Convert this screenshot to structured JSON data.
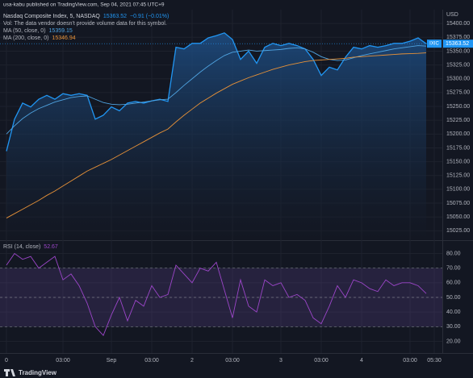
{
  "header": {
    "text": "usa-kabu published on TradingView.com, Sep 04, 2021 07:45 UTC+9"
  },
  "footer": {
    "brand": "TradingView"
  },
  "chart_data": [
    {
      "type": "area",
      "title": "Nasdaq Composite Index, 5, NASDAQ",
      "change": "−0.91 (−0.01%)",
      "note": "Vol: The data vendor doesn't provide volume data for this symbol.",
      "symbol_tag": "IXIC",
      "currency": "USD",
      "grid": true,
      "ylim": [
        15008,
        15425
      ],
      "yticks": [
        {
          "value": 15025,
          "label": "15025.00"
        },
        {
          "value": 15050,
          "label": "15050.00"
        },
        {
          "value": 15075,
          "label": "15075.00"
        },
        {
          "value": 15100,
          "label": "15100.00"
        },
        {
          "value": 15125,
          "label": "15125.00"
        },
        {
          "value": 15150,
          "label": "15150.00"
        },
        {
          "value": 15175,
          "label": "15175.00"
        },
        {
          "value": 15200,
          "label": "15200.00"
        },
        {
          "value": 15225,
          "label": "15225.00"
        },
        {
          "value": 15250,
          "label": "15250.00"
        },
        {
          "value": 15275,
          "label": "15275.00"
        },
        {
          "value": 15300,
          "label": "15300.00"
        },
        {
          "value": 15325,
          "label": "15325.00"
        },
        {
          "value": 15350,
          "label": "15350.00"
        },
        {
          "value": 15375,
          "label": "15375.00"
        },
        {
          "value": 15400,
          "label": "15400.00"
        }
      ],
      "series": [
        {
          "name": "Nasdaq Composite Index, 5, NASDAQ",
          "color": "#2196f3",
          "values": [
            15169,
            15227,
            15256,
            15249,
            15263,
            15270,
            15263,
            15273,
            15270,
            15273,
            15270,
            15227,
            15234,
            15249,
            15242,
            15256,
            15259,
            15256,
            15260,
            15263,
            15259,
            15357,
            15354,
            15364,
            15364,
            15374,
            15378,
            15383,
            15371,
            15335,
            15350,
            15328,
            15357,
            15364,
            15360,
            15364,
            15360,
            15354,
            15335,
            15306,
            15321,
            15316,
            15339,
            15357,
            15354,
            15360,
            15357,
            15360,
            15364,
            15364,
            15368,
            15374,
            15363.52,
            null
          ]
        },
        {
          "name": "MA (50, close, 0)",
          "color": "#4fa3e0",
          "values": [
            15200,
            15215,
            15228,
            15238,
            15246,
            15252,
            15258,
            15262,
            15266,
            15268,
            15269,
            15263,
            15257,
            15254,
            15253,
            15254,
            15256,
            15258,
            15260,
            15262,
            15263,
            15275,
            15288,
            15300,
            15312,
            15323,
            15333,
            15342,
            15348,
            15350,
            15352,
            15350,
            15351,
            15352,
            15353,
            15355,
            15356,
            15354,
            15348,
            15340,
            15335,
            15333,
            15334,
            15338,
            15342,
            15345,
            15348,
            15351,
            15354,
            15356,
            15358,
            15360,
            15359.15,
            null
          ]
        },
        {
          "name": "MA (200, close, 0)",
          "color": "#e69138",
          "values": [
            15048,
            15056,
            15064,
            15072,
            15080,
            15089,
            15097,
            15106,
            15115,
            15124,
            15133,
            15140,
            15147,
            15154,
            15162,
            15170,
            15178,
            15186,
            15194,
            15202,
            15209,
            15222,
            15234,
            15245,
            15256,
            15265,
            15274,
            15282,
            15290,
            15296,
            15302,
            15307,
            15312,
            15317,
            15321,
            15325,
            15328,
            15331,
            15333,
            15334,
            15335,
            15336,
            15337,
            15339,
            15340,
            15341,
            15342,
            15343,
            15344,
            15345,
            15345.5,
            15346,
            15346.94,
            null
          ]
        }
      ]
    },
    {
      "type": "line",
      "grid": true,
      "ylim": [
        12,
        88
      ],
      "yticks": [
        {
          "value": 20,
          "label": "20.00"
        },
        {
          "value": 30,
          "label": "30.00"
        },
        {
          "value": 40,
          "label": "40.00"
        },
        {
          "value": 50,
          "label": "50.00"
        },
        {
          "value": 60,
          "label": "60.00"
        },
        {
          "value": 70,
          "label": "70.00"
        },
        {
          "value": 80,
          "label": "80.00"
        }
      ],
      "levels": [
        30,
        50,
        70
      ],
      "categories": [
        "0",
        null,
        null,
        null,
        null,
        null,
        null,
        "03:00",
        null,
        null,
        null,
        null,
        null,
        "Sep",
        null,
        null,
        null,
        null,
        "03:00",
        null,
        null,
        null,
        null,
        "2",
        null,
        null,
        null,
        null,
        "03:00",
        null,
        null,
        null,
        null,
        null,
        "3",
        null,
        null,
        null,
        null,
        "03:00",
        null,
        null,
        null,
        null,
        "4",
        null,
        null,
        null,
        null,
        null,
        "03:00",
        null,
        null,
        "05:30"
      ],
      "series": [
        {
          "name": "RSI (14, close)",
          "color": "#9c46c9",
          "values": [
            72,
            80,
            76,
            78,
            70,
            74,
            78,
            62,
            66,
            58,
            46,
            30,
            24,
            38,
            50,
            34,
            48,
            44,
            58,
            50,
            52,
            72,
            66,
            60,
            70,
            68,
            74,
            55,
            36,
            62,
            44,
            40,
            62,
            58,
            60,
            50,
            52,
            48,
            36,
            32,
            44,
            58,
            50,
            62,
            60,
            56,
            54,
            62,
            58,
            60,
            60,
            58,
            52.67,
            null
          ]
        }
      ]
    }
  ]
}
